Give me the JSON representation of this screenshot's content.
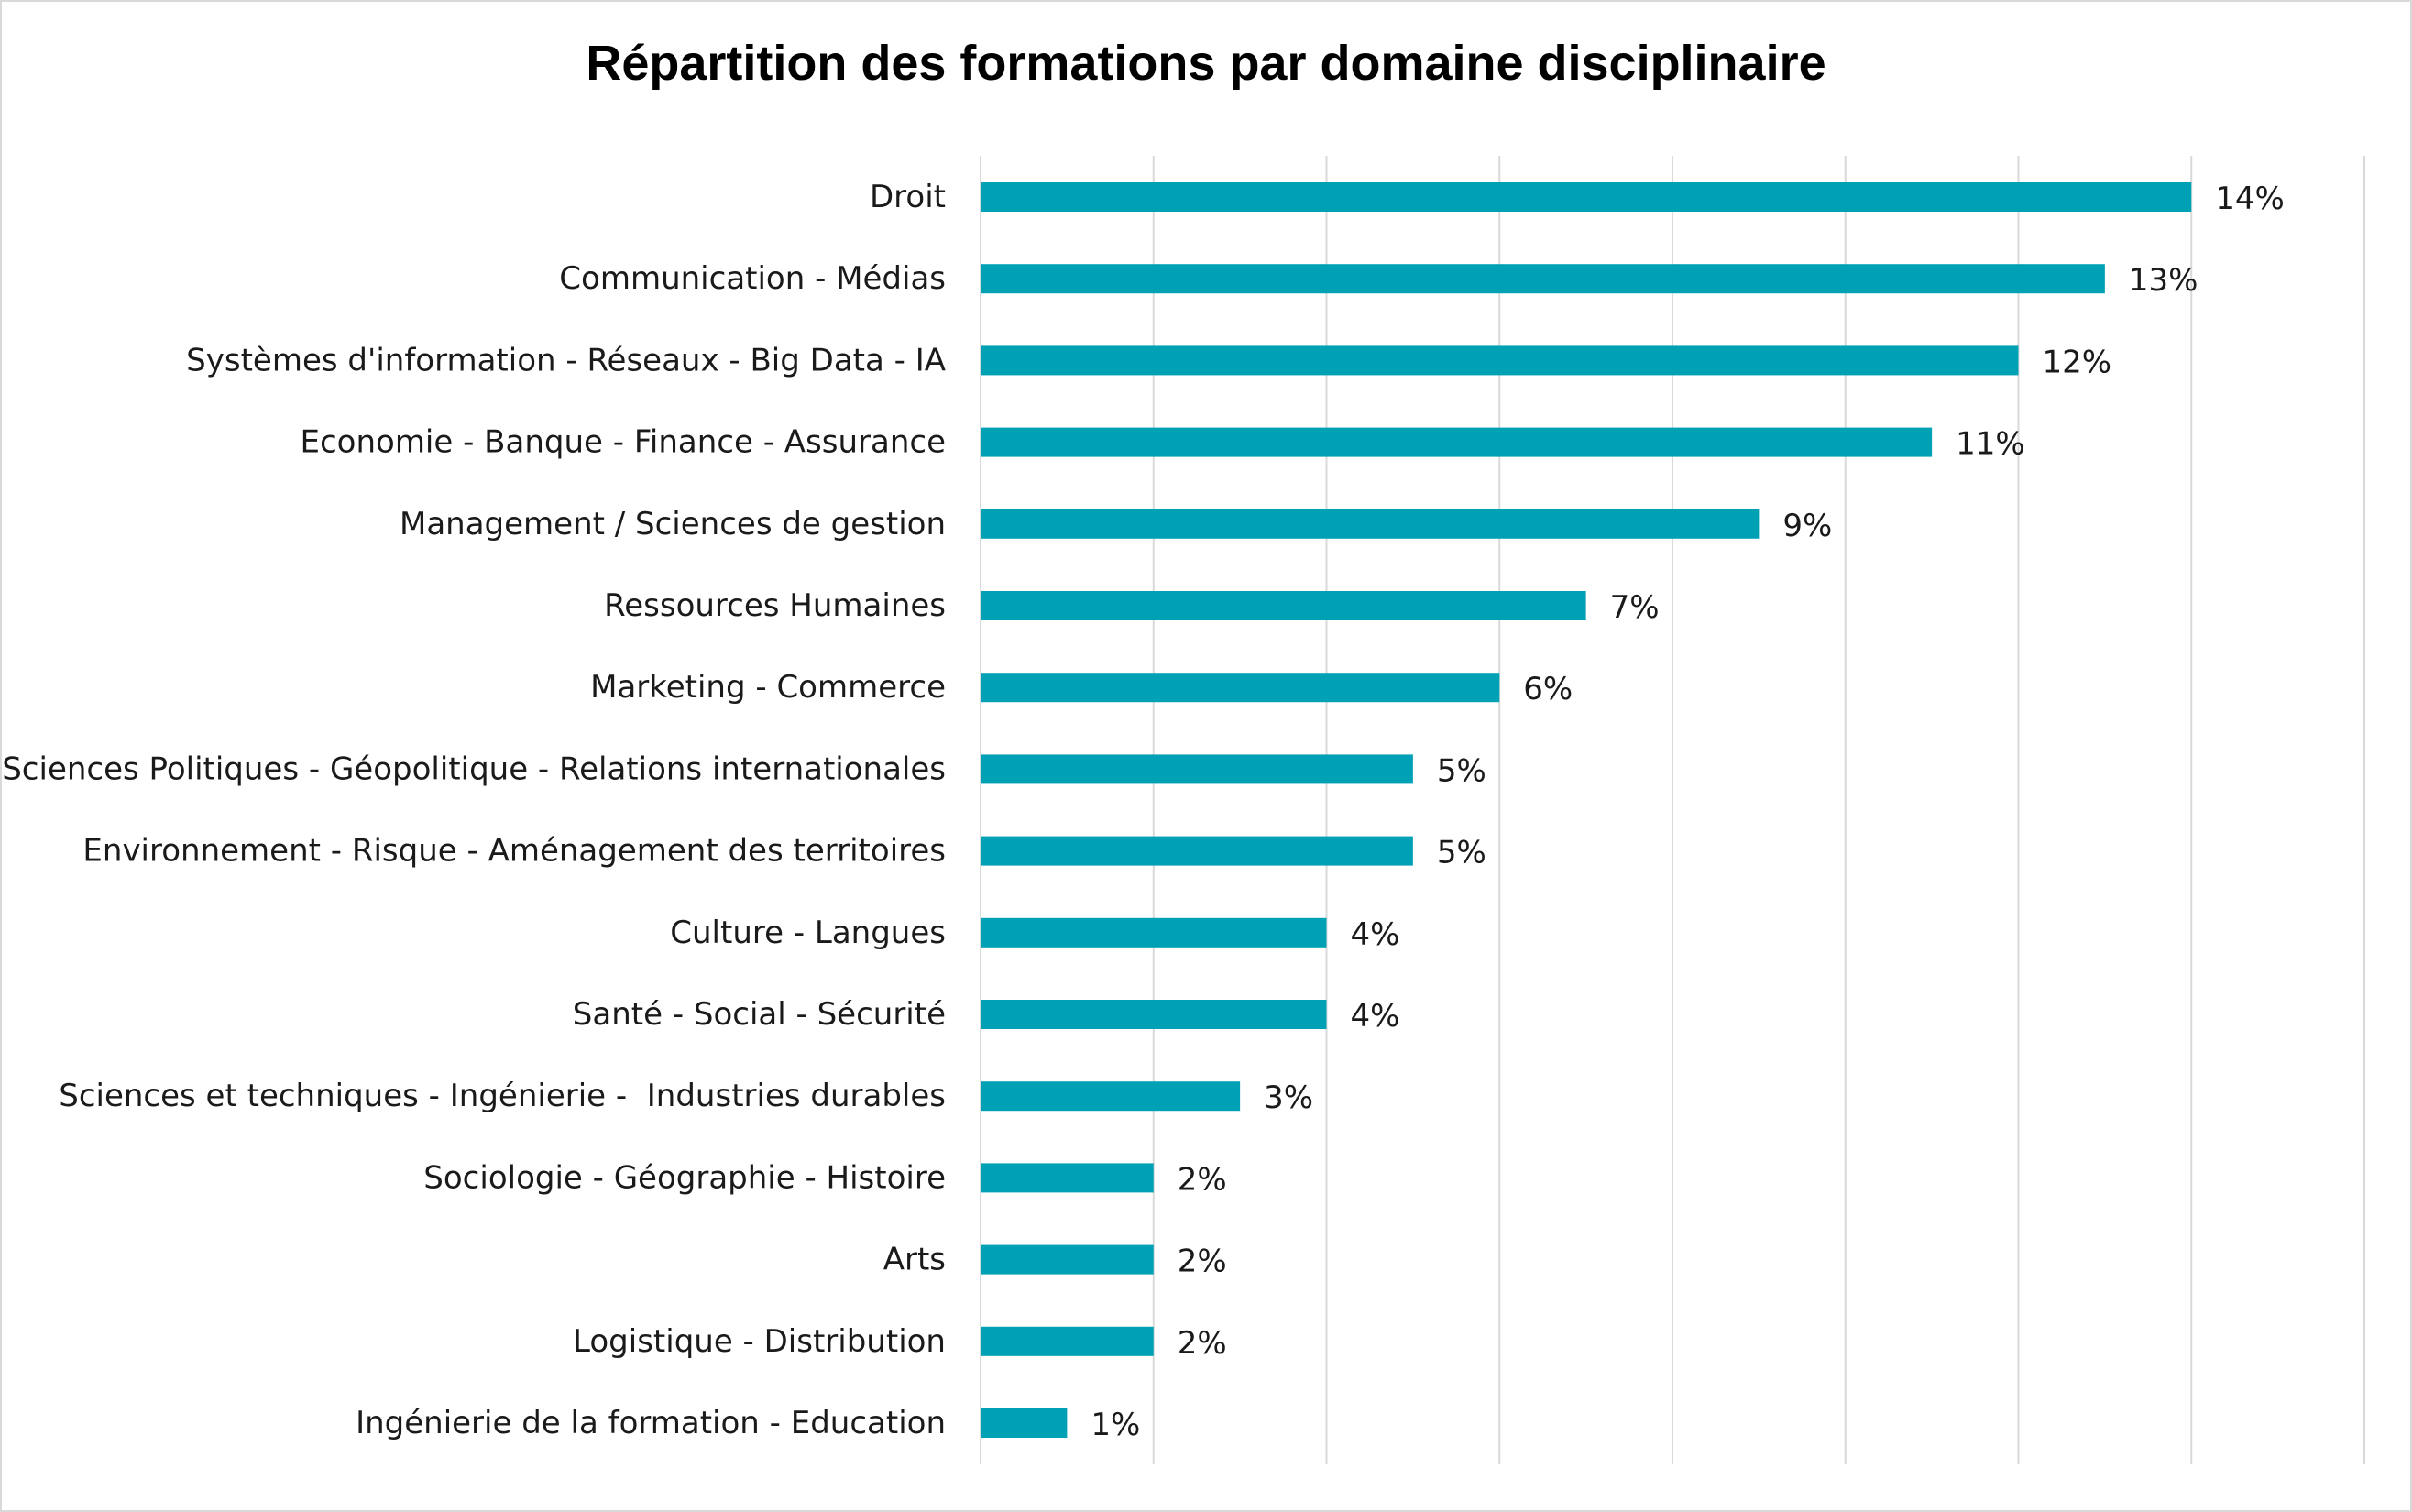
{
  "chart_data": {
    "type": "bar",
    "orientation": "horizontal",
    "title": "Répartition des formations par domaine disciplinaire",
    "xlabel": "",
    "ylabel": "",
    "categories": [
      "Droit",
      "Communication - Médias",
      "Systèmes d'information - Réseaux - Big Data - IA",
      "Economie - Banque - Finance - Assurance",
      "Management / Sciences de gestion",
      "Ressources Humaines",
      "Marketing - Commerce",
      "Sciences Politiques - Géopolitique - Relations internationales",
      "Environnement - Risque - Aménagement des territoires",
      "Culture - Langues",
      "Santé - Social - Sécurité",
      "Sciences et techniques - Ingénierie -  Industries durables",
      "Sociologie - Géographie - Histoire",
      "Arts",
      "Logistique - Distribution",
      "Ingénierie de la formation - Education"
    ],
    "values": [
      14,
      13,
      12,
      11,
      9,
      7,
      6,
      5,
      5,
      4,
      4,
      3,
      2,
      2,
      2,
      1
    ],
    "data_labels": [
      "14%",
      "13%",
      "12%",
      "11%",
      "9%",
      "7%",
      "6%",
      "5%",
      "5%",
      "4%",
      "4%",
      "3%",
      "2%",
      "2%",
      "2%",
      "1%"
    ],
    "xlim": [
      0,
      16
    ],
    "gridlines": "vertical",
    "gridline_step": 2,
    "legend": "none",
    "bar_color": "#00A1B5",
    "gridline_color": "#d9d9d9"
  }
}
